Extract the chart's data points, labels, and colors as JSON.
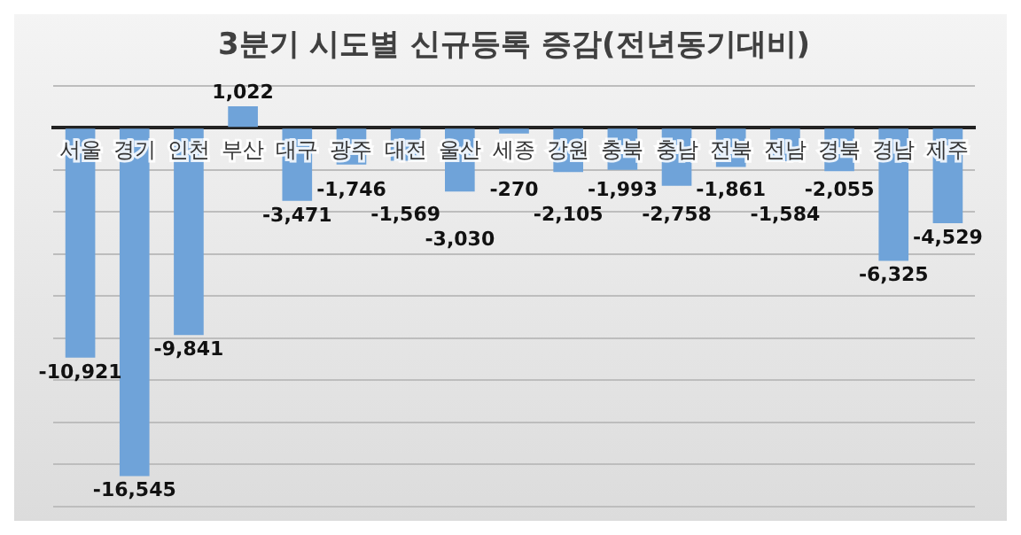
{
  "chart_data": {
    "type": "bar",
    "title": "3분기 시도별 신규등록 증감(전년동기대비)",
    "categories": [
      "서울",
      "경기",
      "인천",
      "부산",
      "대구",
      "광주",
      "대전",
      "울산",
      "세종",
      "강원",
      "충북",
      "충남",
      "전북",
      "전남",
      "경북",
      "경남",
      "제주"
    ],
    "values": [
      -10921,
      -16545,
      -9841,
      1022,
      -3471,
      -1746,
      -1569,
      -3030,
      -270,
      -2105,
      -1993,
      -2758,
      -1861,
      -1584,
      -2055,
      -6325,
      -4529
    ],
    "color": "#6fa3d9",
    "ylim": [
      -18000,
      2000
    ],
    "yticks": [
      {
        "value": -18000,
        "label": null
      },
      {
        "value": -16000,
        "label": null
      },
      {
        "value": -14000,
        "label": null
      },
      {
        "value": -12000,
        "label": null
      },
      {
        "value": -10000,
        "label": null
      },
      {
        "value": -8000,
        "label": null
      },
      {
        "value": -6000,
        "label": null
      },
      {
        "value": -4000,
        "label": null
      },
      {
        "value": -2000,
        "label": null
      },
      {
        "value": 0,
        "label": null
      },
      {
        "value": 2000,
        "label": null
      }
    ],
    "tick_labels": "x",
    "grid": "y",
    "value_labels": [
      "-10,921",
      "-16,545",
      "-9,841",
      "1,022",
      "-3,471",
      "-1,746",
      "-1,569",
      "-3,030",
      "-270",
      "-2,105",
      "-1,993",
      "-2,758",
      "-1,861",
      "-1,584",
      "-2,055",
      "-6,325",
      "-4,529"
    ]
  }
}
